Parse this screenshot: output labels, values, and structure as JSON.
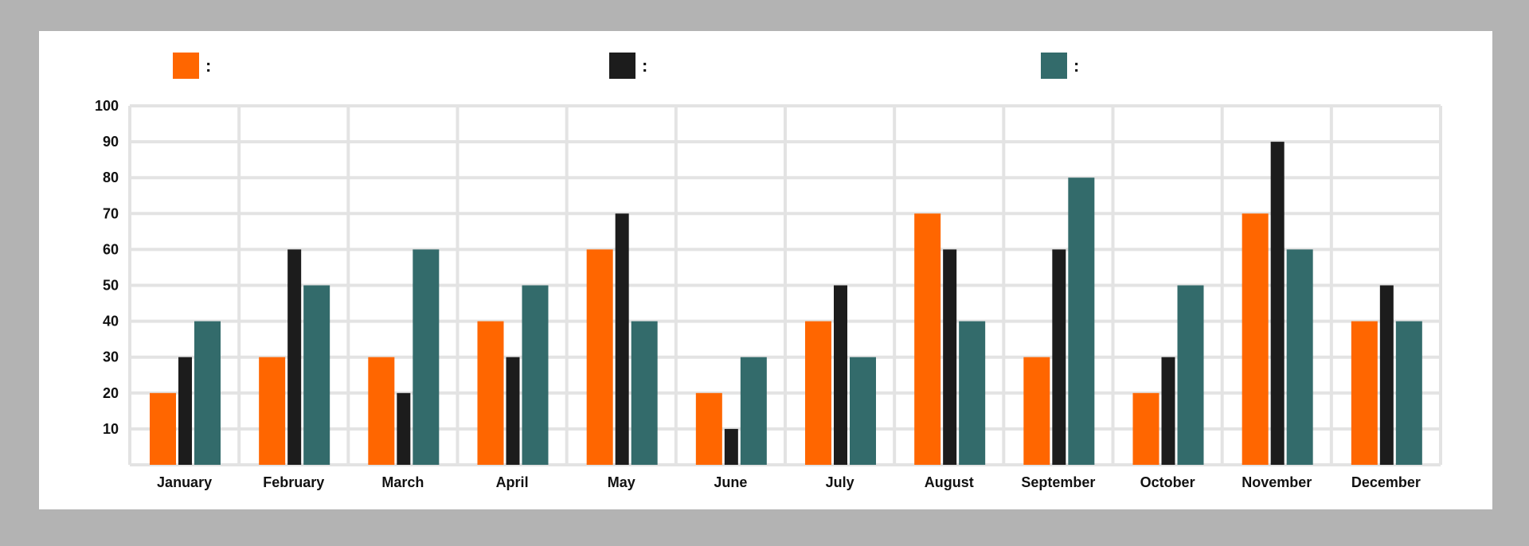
{
  "chart_data": {
    "type": "bar",
    "title": "",
    "xlabel": "",
    "ylabel": "",
    "ylim": [
      0,
      100
    ],
    "yticks": [
      10,
      20,
      30,
      40,
      50,
      60,
      70,
      80,
      90,
      100
    ],
    "grid": true,
    "legend_position": "top",
    "categories": [
      "January",
      "February",
      "March",
      "April",
      "May",
      "June",
      "July",
      "August",
      "September",
      "October",
      "November",
      "December"
    ],
    "series": [
      {
        "legend_text": ":",
        "color": "#ff6600",
        "values": [
          20,
          30,
          30,
          40,
          60,
          20,
          40,
          70,
          30,
          20,
          70,
          40
        ]
      },
      {
        "legend_text": ":",
        "color": "#1c1c1c",
        "values": [
          30,
          60,
          20,
          30,
          70,
          10,
          50,
          60,
          60,
          30,
          90,
          50
        ]
      },
      {
        "legend_text": ":",
        "color": "#336b6b",
        "values": [
          40,
          50,
          60,
          50,
          40,
          30,
          30,
          40,
          80,
          50,
          60,
          40
        ]
      }
    ],
    "colors": {
      "background": "#b3b3b3",
      "panel": "#ffffff",
      "grid": "#e3e3e3"
    }
  }
}
